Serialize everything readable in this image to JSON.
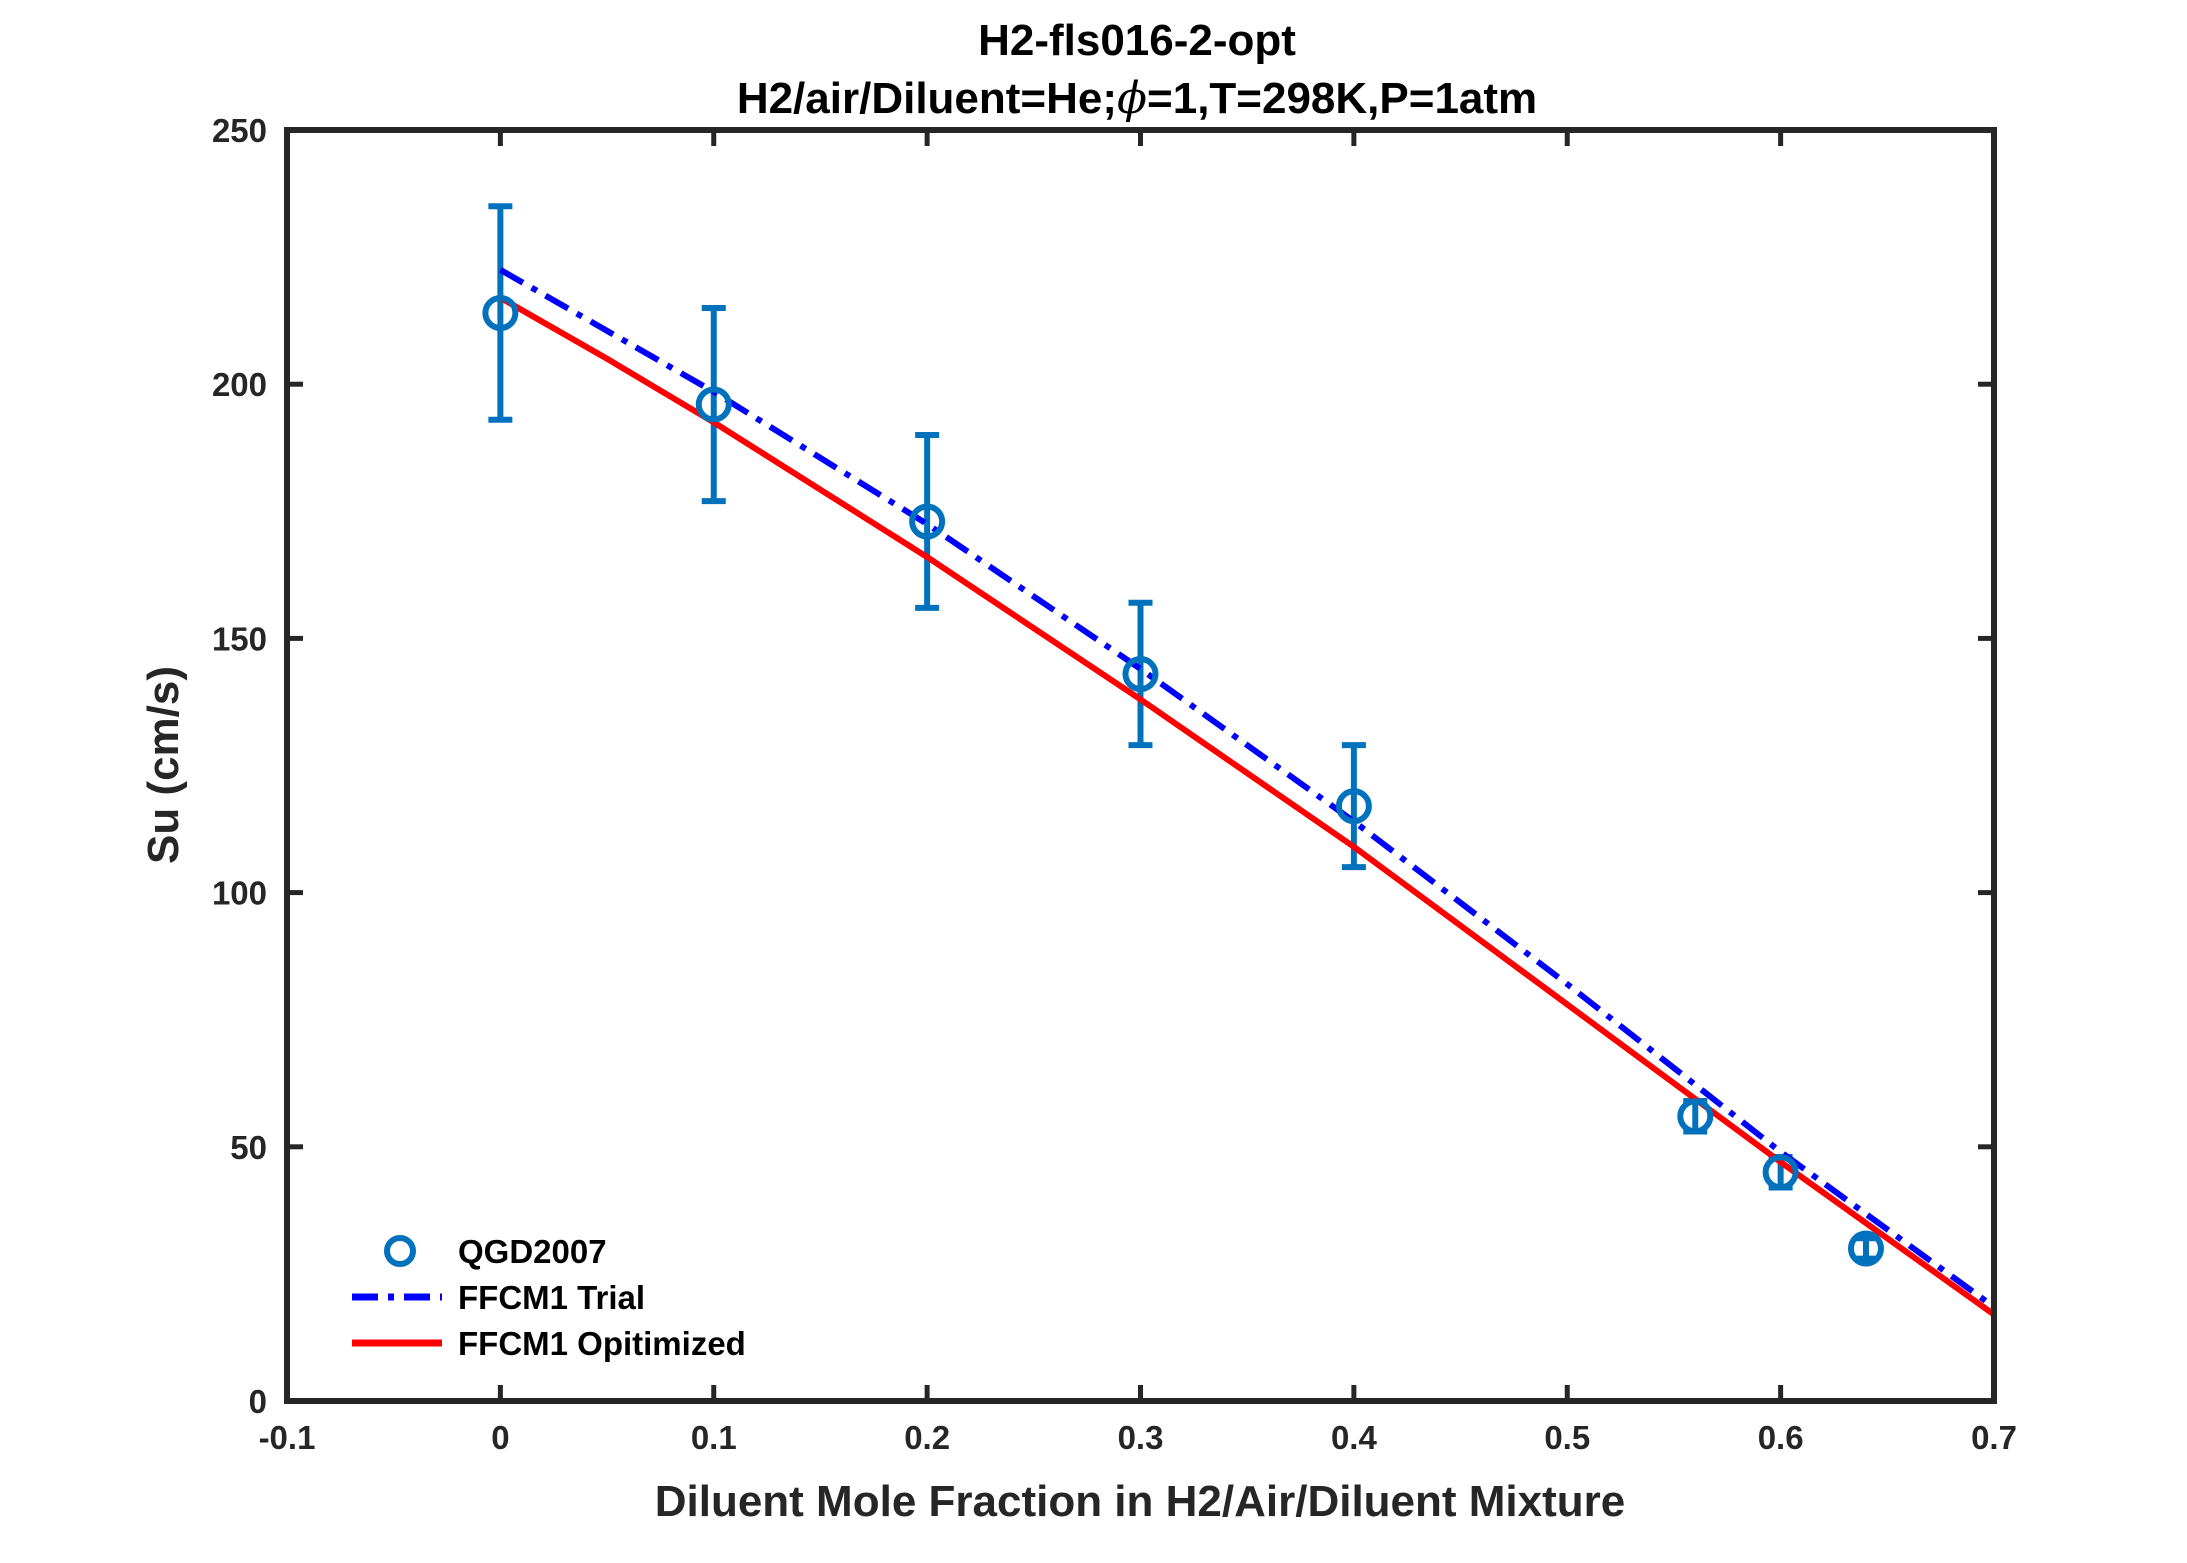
{
  "chart_data": {
    "type": "line",
    "title": "H2-fls016-2-opt",
    "subtitle_prefix": "H2/air/Diluent=He;",
    "subtitle_symbol": "ϕ",
    "subtitle_suffix": "=1,T=298K,P=1atm",
    "xlabel": "Diluent Mole Fraction in H2/Air/Diluent Mixture",
    "ylabel": "Su (cm/s)",
    "xlim": [
      -0.1,
      0.7
    ],
    "ylim": [
      0,
      250
    ],
    "xticks": [
      -0.1,
      0,
      0.1,
      0.2,
      0.3,
      0.4,
      0.5,
      0.6,
      0.7
    ],
    "xtick_labels": [
      "-0.1",
      "0",
      "0.1",
      "0.2",
      "0.3",
      "0.4",
      "0.5",
      "0.6",
      "0.7"
    ],
    "yticks": [
      0,
      50,
      100,
      150,
      200,
      250
    ],
    "ytick_labels": [
      "0",
      "50",
      "100",
      "150",
      "200",
      "250"
    ],
    "legend_position": "bottom-left",
    "series": [
      {
        "name": "QGD2007",
        "kind": "scatter-errorbar",
        "color": "#0072BD",
        "x": [
          0,
          0.1,
          0.2,
          0.3,
          0.4,
          0.56,
          0.6,
          0.64
        ],
        "y": [
          214,
          196,
          173,
          143,
          117,
          56,
          45,
          30
        ],
        "err_low": [
          21,
          19,
          17,
          14,
          12,
          3,
          3,
          2
        ],
        "err_high": [
          21,
          19,
          17,
          14,
          12,
          3,
          3,
          2
        ]
      },
      {
        "name": "FFCM1 Trial",
        "kind": "line",
        "style": "dash-dot",
        "color": "#0000FF",
        "x": [
          0,
          0.1,
          0.2,
          0.3,
          0.4,
          0.5,
          0.6,
          0.7
        ],
        "y": [
          222.5,
          198.5,
          172.5,
          144,
          114,
          82,
          49,
          18.5
        ]
      },
      {
        "name": "FFCM1 Opitimized",
        "kind": "line",
        "style": "solid",
        "color": "#FF0000",
        "x": [
          0,
          0.05,
          0.1,
          0.2,
          0.3,
          0.4,
          0.5,
          0.6,
          0.7
        ],
        "y": [
          217,
          205,
          192.5,
          166,
          138,
          109,
          78,
          47,
          17
        ]
      }
    ]
  }
}
